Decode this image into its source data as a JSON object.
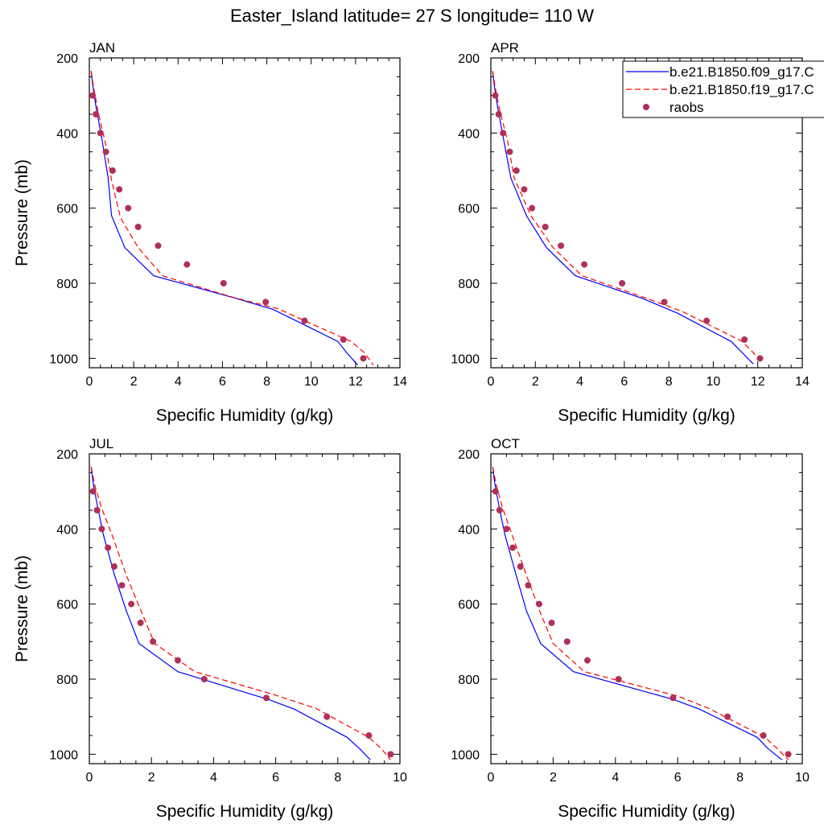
{
  "figure": {
    "title": "Easter_Island  latitude= 27 S longitude= 110 W"
  },
  "colors": {
    "series1": "#0000ff",
    "series2": "#ff0000",
    "raobs": "#b0305a",
    "axes": "#000000",
    "background": "#ffffff"
  },
  "legend": {
    "placement": "top-right of APR panel",
    "entries": [
      {
        "label": "b.e21.B1850.f09_g17.C",
        "style": "solid",
        "color": "#0000ff"
      },
      {
        "label": "b.e21.B1850.f19_g17.C",
        "style": "dashed",
        "color": "#ff0000"
      },
      {
        "label": "raobs",
        "style": "marker",
        "color": "#b0305a"
      }
    ]
  },
  "chart_data": [
    {
      "type": "line",
      "title": "JAN",
      "xlabel": "Specific Humidity (g/kg)",
      "ylabel": "Pressure (mb)",
      "xlim": [
        0,
        14
      ],
      "ylim": [
        1025,
        200
      ],
      "xticks": [
        0,
        2,
        4,
        6,
        8,
        10,
        12,
        14
      ],
      "yticks": [
        200,
        400,
        600,
        800,
        1000
      ],
      "series": [
        {
          "name": "b.e21.B1850.f09_g17.C",
          "style": "solid",
          "points": [
            [
              0.08,
              235
            ],
            [
              0.15,
              270
            ],
            [
              0.3,
              330
            ],
            [
              0.55,
              410
            ],
            [
              0.85,
              520
            ],
            [
              1.0,
              620
            ],
            [
              1.6,
              705
            ],
            [
              2.9,
              780
            ],
            [
              6.6,
              840
            ],
            [
              8.3,
              870
            ],
            [
              11.2,
              955
            ],
            [
              11.6,
              985
            ],
            [
              12.1,
              1018
            ]
          ]
        },
        {
          "name": "b.e21.B1850.f19_g17.C",
          "style": "dashed",
          "points": [
            [
              0.08,
              235
            ],
            [
              0.2,
              280
            ],
            [
              0.4,
              345
            ],
            [
              0.7,
              420
            ],
            [
              1.0,
              525
            ],
            [
              1.4,
              625
            ],
            [
              2.2,
              705
            ],
            [
              3.3,
              780
            ],
            [
              6.5,
              838
            ],
            [
              8.5,
              868
            ],
            [
              11.8,
              955
            ],
            [
              12.4,
              985
            ],
            [
              12.8,
              1018
            ]
          ]
        },
        {
          "name": "raobs",
          "style": "marker",
          "points": [
            [
              0.15,
              300
            ],
            [
              0.3,
              350
            ],
            [
              0.5,
              400
            ],
            [
              0.75,
              450
            ],
            [
              1.05,
              500
            ],
            [
              1.35,
              550
            ],
            [
              1.75,
              600
            ],
            [
              2.2,
              650
            ],
            [
              3.1,
              700
            ],
            [
              4.4,
              750
            ],
            [
              6.05,
              800
            ],
            [
              7.95,
              850
            ],
            [
              9.7,
              900
            ],
            [
              11.45,
              950
            ],
            [
              12.35,
              1000
            ]
          ]
        }
      ]
    },
    {
      "type": "line",
      "title": "APR",
      "xlabel": "Specific Humidity (g/kg)",
      "ylabel": "",
      "xlim": [
        0,
        14
      ],
      "ylim": [
        1025,
        200
      ],
      "xticks": [
        0,
        2,
        4,
        6,
        8,
        10,
        12,
        14
      ],
      "yticks": [
        200,
        400,
        600,
        800,
        1000
      ],
      "series": [
        {
          "name": "b.e21.B1850.f09_g17.C",
          "style": "solid",
          "points": [
            [
              0.08,
              235
            ],
            [
              0.15,
              270
            ],
            [
              0.3,
              330
            ],
            [
              0.55,
              410
            ],
            [
              0.9,
              520
            ],
            [
              1.6,
              620
            ],
            [
              2.5,
              705
            ],
            [
              3.8,
              780
            ],
            [
              6.8,
              840
            ],
            [
              8.4,
              880
            ],
            [
              10.8,
              955
            ],
            [
              11.3,
              985
            ],
            [
              11.8,
              1015
            ]
          ]
        },
        {
          "name": "b.e21.B1850.f19_g17.C",
          "style": "dashed",
          "points": [
            [
              0.08,
              235
            ],
            [
              0.2,
              280
            ],
            [
              0.4,
              340
            ],
            [
              0.75,
              420
            ],
            [
              1.05,
              520
            ],
            [
              1.8,
              620
            ],
            [
              2.8,
              705
            ],
            [
              4.1,
              780
            ],
            [
              6.9,
              838
            ],
            [
              8.6,
              875
            ],
            [
              11.3,
              955
            ],
            [
              11.8,
              985
            ],
            [
              12.2,
              1012
            ]
          ]
        },
        {
          "name": "raobs",
          "style": "marker",
          "points": [
            [
              0.2,
              300
            ],
            [
              0.35,
              350
            ],
            [
              0.55,
              400
            ],
            [
              0.85,
              450
            ],
            [
              1.15,
              500
            ],
            [
              1.5,
              550
            ],
            [
              1.85,
              600
            ],
            [
              2.45,
              650
            ],
            [
              3.15,
              700
            ],
            [
              4.2,
              750
            ],
            [
              5.9,
              800
            ],
            [
              7.8,
              850
            ],
            [
              9.7,
              900
            ],
            [
              11.4,
              950
            ],
            [
              12.1,
              1000
            ]
          ]
        }
      ]
    },
    {
      "type": "line",
      "title": "JUL",
      "xlabel": "Specific Humidity (g/kg)",
      "ylabel": "Pressure (mb)",
      "xlim": [
        0,
        10
      ],
      "ylim": [
        1025,
        200
      ],
      "xticks": [
        0,
        2,
        4,
        6,
        8,
        10
      ],
      "yticks": [
        200,
        400,
        600,
        800,
        1000
      ],
      "series": [
        {
          "name": "b.e21.B1850.f09_g17.C",
          "style": "solid",
          "points": [
            [
              0.06,
              235
            ],
            [
              0.12,
              275
            ],
            [
              0.25,
              335
            ],
            [
              0.45,
              415
            ],
            [
              0.8,
              520
            ],
            [
              1.2,
              620
            ],
            [
              1.6,
              705
            ],
            [
              2.85,
              780
            ],
            [
              5.8,
              855
            ],
            [
              6.6,
              880
            ],
            [
              8.3,
              955
            ],
            [
              8.7,
              985
            ],
            [
              9.05,
              1015
            ]
          ]
        },
        {
          "name": "b.e21.B1850.f19_g17.C",
          "style": "dashed",
          "points": [
            [
              0.06,
              235
            ],
            [
              0.18,
              285
            ],
            [
              0.4,
              345
            ],
            [
              0.75,
              420
            ],
            [
              1.2,
              525
            ],
            [
              1.7,
              625
            ],
            [
              2.1,
              705
            ],
            [
              3.4,
              780
            ],
            [
              5.9,
              840
            ],
            [
              7.3,
              878
            ],
            [
              9.0,
              955
            ],
            [
              9.4,
              985
            ],
            [
              9.7,
              1015
            ]
          ]
        },
        {
          "name": "raobs",
          "style": "marker",
          "points": [
            [
              0.12,
              300
            ],
            [
              0.25,
              350
            ],
            [
              0.4,
              400
            ],
            [
              0.6,
              450
            ],
            [
              0.8,
              500
            ],
            [
              1.05,
              550
            ],
            [
              1.35,
              600
            ],
            [
              1.65,
              650
            ],
            [
              2.05,
              700
            ],
            [
              2.85,
              750
            ],
            [
              3.7,
              800
            ],
            [
              5.7,
              850
            ],
            [
              7.65,
              900
            ],
            [
              9.0,
              950
            ],
            [
              9.7,
              1000
            ]
          ]
        }
      ]
    },
    {
      "type": "line",
      "title": "OCT",
      "xlabel": "Specific Humidity (g/kg)",
      "ylabel": "",
      "xlim": [
        0,
        10
      ],
      "ylim": [
        1025,
        200
      ],
      "xticks": [
        0,
        2,
        4,
        6,
        8,
        10
      ],
      "yticks": [
        200,
        400,
        600,
        800,
        1000
      ],
      "series": [
        {
          "name": "b.e21.B1850.f09_g17.C",
          "style": "solid",
          "points": [
            [
              0.06,
              235
            ],
            [
              0.12,
              275
            ],
            [
              0.25,
              335
            ],
            [
              0.45,
              415
            ],
            [
              0.8,
              520
            ],
            [
              1.15,
              620
            ],
            [
              1.6,
              705
            ],
            [
              2.65,
              780
            ],
            [
              5.9,
              855
            ],
            [
              6.7,
              880
            ],
            [
              8.55,
              955
            ],
            [
              8.9,
              985
            ],
            [
              9.35,
              1015
            ]
          ]
        },
        {
          "name": "b.e21.B1850.f19_g17.C",
          "style": "dashed",
          "points": [
            [
              0.06,
              235
            ],
            [
              0.18,
              285
            ],
            [
              0.38,
              345
            ],
            [
              0.7,
              420
            ],
            [
              1.15,
              525
            ],
            [
              1.6,
              625
            ],
            [
              2.0,
              705
            ],
            [
              3.0,
              780
            ],
            [
              6.0,
              845
            ],
            [
              7.0,
              878
            ],
            [
              8.8,
              955
            ],
            [
              9.2,
              985
            ],
            [
              9.55,
              1015
            ]
          ]
        },
        {
          "name": "raobs",
          "style": "marker",
          "points": [
            [
              0.15,
              300
            ],
            [
              0.28,
              350
            ],
            [
              0.5,
              400
            ],
            [
              0.7,
              450
            ],
            [
              0.95,
              500
            ],
            [
              1.2,
              550
            ],
            [
              1.55,
              600
            ],
            [
              1.95,
              650
            ],
            [
              2.45,
              700
            ],
            [
              3.1,
              750
            ],
            [
              4.1,
              800
            ],
            [
              5.85,
              850
            ],
            [
              7.6,
              900
            ],
            [
              8.75,
              950
            ],
            [
              9.55,
              1000
            ]
          ]
        }
      ]
    }
  ]
}
